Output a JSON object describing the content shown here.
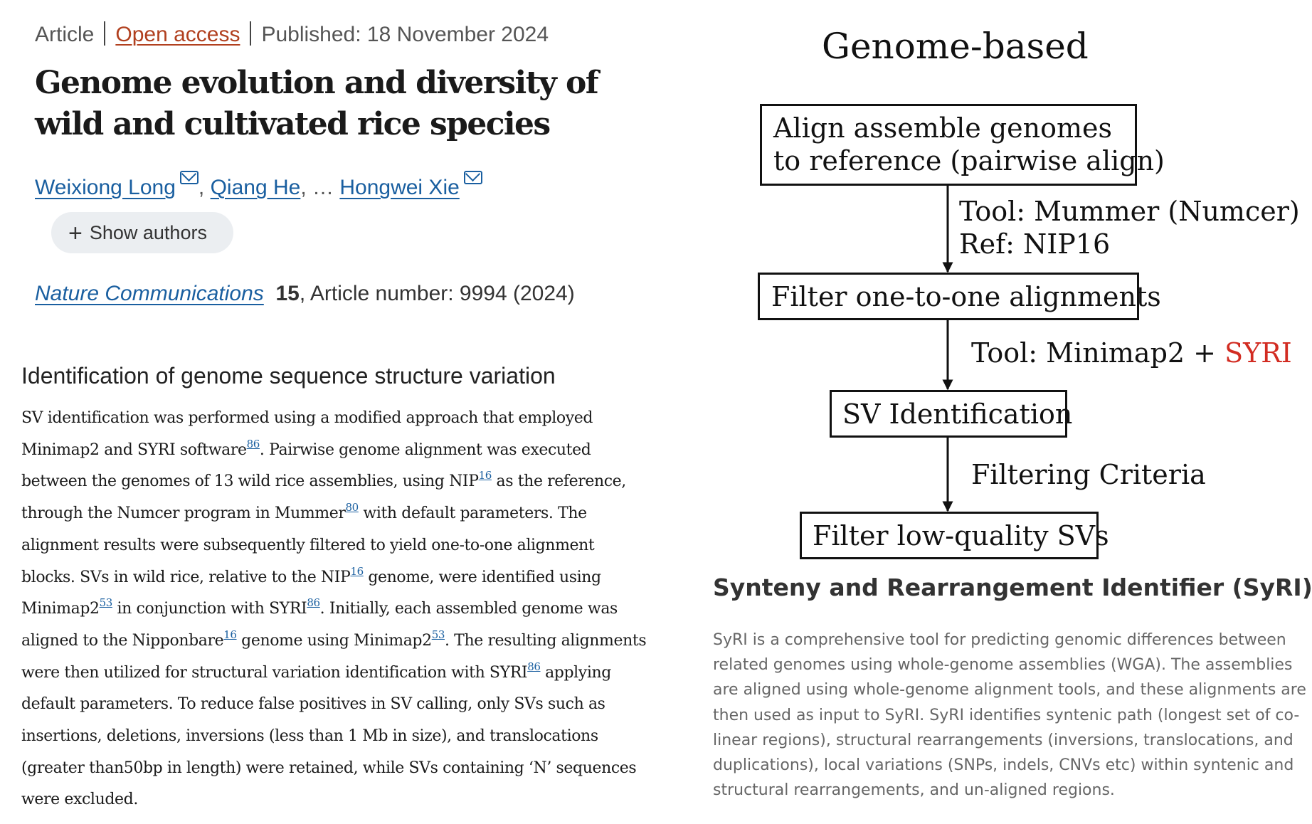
{
  "article": {
    "type": "Article",
    "access": "Open access",
    "published": "Published: 18 November 2024",
    "title": "Genome evolution and diversity of wild and cultivated rice species",
    "authors": {
      "a1": "Weixiong Long",
      "a2": "Qiang He",
      "ellipsis": "…",
      "a3": "Hongwei Xie"
    },
    "show_authors": "Show authors",
    "journal": "Nature Communications",
    "volume": "15",
    "article_number": ", Article number: 9994 (2024)"
  },
  "methods": {
    "heading": "Identification of genome sequence structure variation",
    "t1": "SV identification was performed using a modified approach that employed Minimap2 and SYRI software",
    "r1": "86",
    "t2": ". Pairwise genome alignment was executed between the genomes of 13 wild rice assemblies, using NIP",
    "r2": "16",
    "t3": " as the reference, through the Numcer program in Mummer",
    "r3": "80",
    "t4": " with default parameters. The alignment results were subsequently filtered to yield one-to-one alignment blocks. SVs in wild rice, relative to the NIP",
    "r4": "16",
    "t5": " genome, were identified using Minimap2",
    "r5": "53",
    "t6": " in conjunction with SYRI",
    "r6": "86",
    "t7": ". Initially, each assembled genome was aligned to the Nipponbare",
    "r7": "16",
    "t8": " genome using Minimap2",
    "r8": "53",
    "t9": ". The resulting alignments were then utilized for structural variation identification with SYRI",
    "r9": "86",
    "t10": " applying default parameters. To reduce false positives in SV calling, only SVs such as insertions, deletions, inversions (less than 1 Mb in size), and translocations (greater than50bp in length) were retained, while SVs containing ‘N’ sequences were excluded."
  },
  "flowchart": {
    "title": "Genome-based",
    "box1_line1": "Align assemble genomes",
    "box1_line2": "to reference (pairwise align)",
    "step1_line1": "Tool: Mummer (Numcer)",
    "step1_line2": "Ref: NIP16",
    "box2": "Filter one-to-one alignments",
    "step2_prefix": "Tool: Minimap2 + ",
    "step2_highlight": "SYRI",
    "box3": "SV Identification",
    "step3": "Filtering Criteria",
    "box4": "Filter low-quality SVs",
    "highlight_color": "#d22c22"
  },
  "syri": {
    "heading": "Synteny and Rearrangement Identifier (SyRI)",
    "body": "SyRI is a comprehensive tool for predicting genomic differences between related genomes using whole-genome assemblies (WGA). The assemblies are aligned using whole-genome alignment tools, and these alignments are then used as input to SyRI. SyRI identifies syntenic path (longest set of co-linear regions), structural rearrangements (inversions, translocations, and duplications), local variations (SNPs, indels, CNVs etc) within syntenic and structural rearrangements, and un-aligned regions."
  }
}
